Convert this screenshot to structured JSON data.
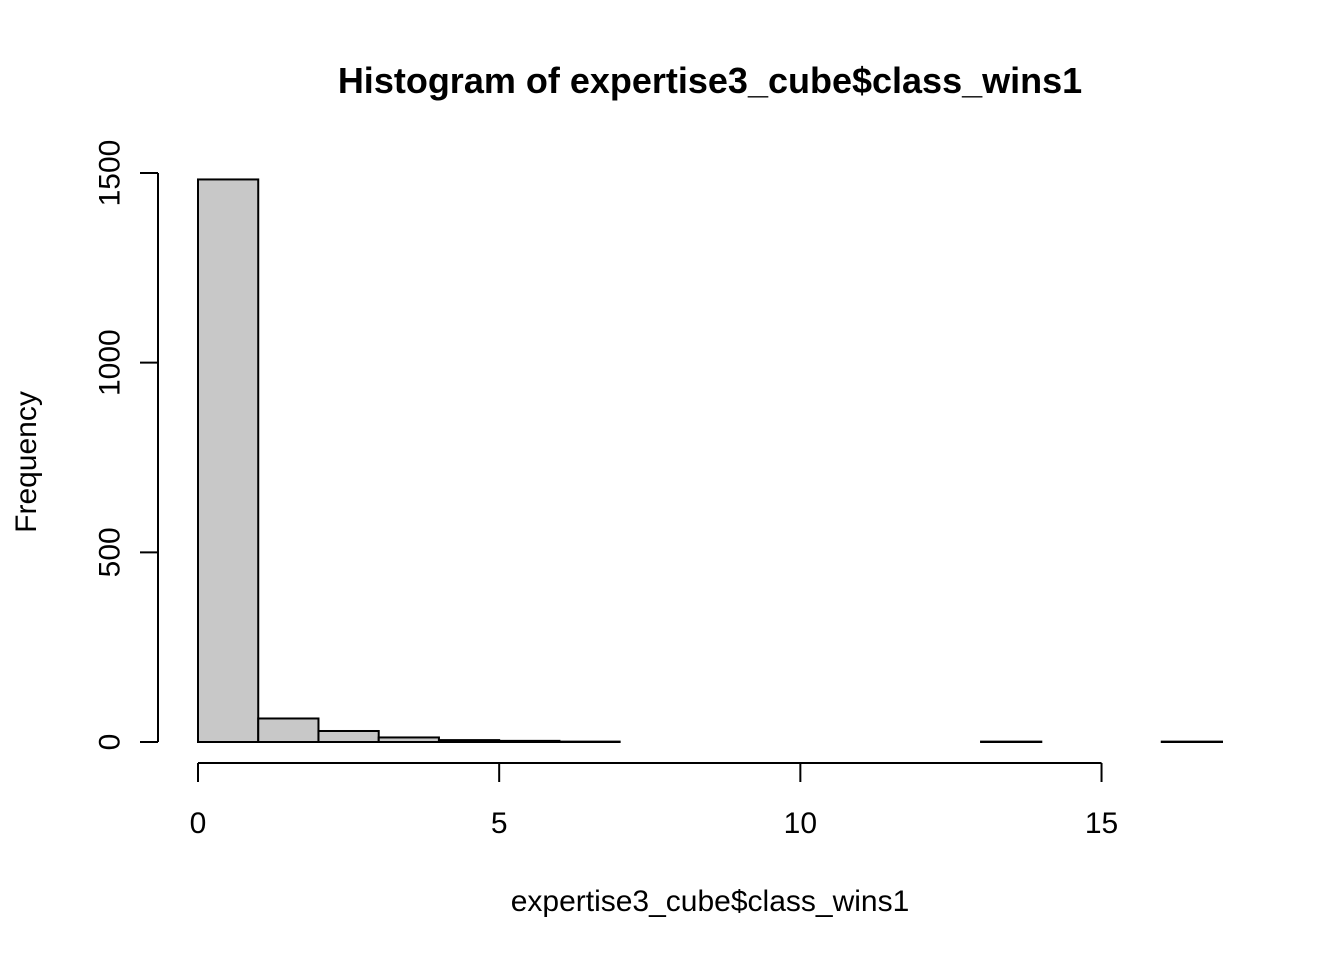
{
  "chart_data": {
    "type": "bar",
    "title": "Histogram of expertise3_cube$class_wins1",
    "xlabel": "expertise3_cube$class_wins1",
    "ylabel": "Frequency",
    "bin_edges": [
      0,
      1,
      2,
      3,
      4,
      5,
      6,
      7,
      8,
      9,
      10,
      11,
      12,
      13,
      14,
      15,
      16,
      17
    ],
    "values": [
      1483,
      62,
      29,
      12,
      5,
      3,
      1,
      0,
      0,
      0,
      0,
      0,
      0,
      1,
      0,
      0,
      1
    ],
    "xlim": [
      0,
      17
    ],
    "ylim": [
      0,
      1500
    ],
    "x_ticks": [
      0,
      5,
      10,
      15
    ],
    "x_tick_labels": [
      "0",
      "5",
      "10",
      "15"
    ],
    "y_ticks": [
      0,
      500,
      1000,
      1500
    ],
    "y_tick_labels": [
      "0",
      "500",
      "1000",
      "1500"
    ],
    "bar_fill": "#c8c8c8",
    "bar_stroke": "#000000",
    "grid": false,
    "legend": "none"
  }
}
